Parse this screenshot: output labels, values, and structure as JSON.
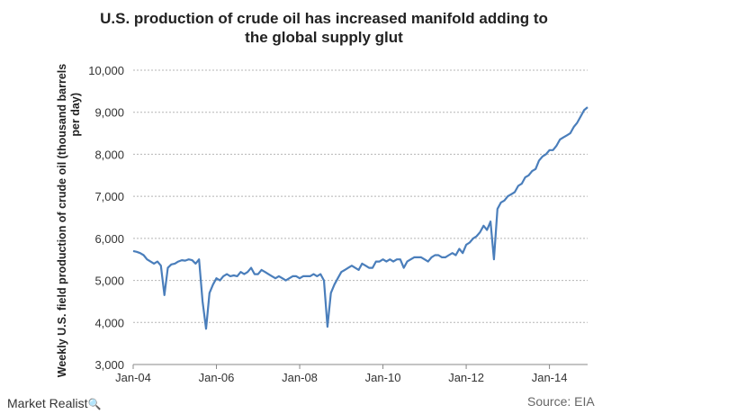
{
  "chart_data": {
    "type": "line",
    "title_line1": "U.S. production of crude oil has increased manifold adding to",
    "title_line2": "the global supply glut",
    "ylabel_line1": "Weekly U.S. field production of crude oil (thousand barrels",
    "ylabel_line2": "per day)",
    "xlabel": "",
    "ylim": [
      3000,
      10000
    ],
    "yticks": [
      "3,000",
      "4,000",
      "5,000",
      "6,000",
      "7,000",
      "8,000",
      "9,000",
      "10,000"
    ],
    "yticks_values": [
      3000,
      4000,
      5000,
      6000,
      7000,
      8000,
      9000,
      10000
    ],
    "xlim": [
      "2004-01",
      "2014-12"
    ],
    "xticks": [
      "Jan-04",
      "Jan-06",
      "Jan-08",
      "Jan-10",
      "Jan-12",
      "Jan-14"
    ],
    "xticks_values": [
      "2004-01",
      "2006-01",
      "2008-01",
      "2010-01",
      "2012-01",
      "2014-01"
    ],
    "grid": "horizontal-dashed",
    "line_color": "#4a7ebb",
    "series": [
      {
        "x": [
          "2004-01",
          "2004-02",
          "2004-03",
          "2004-04",
          "2004-05",
          "2004-06",
          "2004-07",
          "2004-08",
          "2004-09",
          "2004-10",
          "2004-11",
          "2004-12",
          "2005-01",
          "2005-02",
          "2005-03",
          "2005-04",
          "2005-05",
          "2005-06",
          "2005-07",
          "2005-08",
          "2005-09",
          "2005-10",
          "2005-11",
          "2005-12",
          "2006-01",
          "2006-02",
          "2006-03",
          "2006-04",
          "2006-05",
          "2006-06",
          "2006-07",
          "2006-08",
          "2006-09",
          "2006-10",
          "2006-11",
          "2006-12",
          "2007-01",
          "2007-02",
          "2007-03",
          "2007-04",
          "2007-05",
          "2007-06",
          "2007-07",
          "2007-08",
          "2007-09",
          "2007-10",
          "2007-11",
          "2007-12",
          "2008-01",
          "2008-02",
          "2008-03",
          "2008-04",
          "2008-05",
          "2008-06",
          "2008-07",
          "2008-08",
          "2008-09",
          "2008-10",
          "2008-11",
          "2008-12",
          "2009-01",
          "2009-02",
          "2009-03",
          "2009-04",
          "2009-05",
          "2009-06",
          "2009-07",
          "2009-08",
          "2009-09",
          "2009-10",
          "2009-11",
          "2009-12",
          "2010-01",
          "2010-02",
          "2010-03",
          "2010-04",
          "2010-05",
          "2010-06",
          "2010-07",
          "2010-08",
          "2010-09",
          "2010-10",
          "2010-11",
          "2010-12",
          "2011-01",
          "2011-02",
          "2011-03",
          "2011-04",
          "2011-05",
          "2011-06",
          "2011-07",
          "2011-08",
          "2011-09",
          "2011-10",
          "2011-11",
          "2011-12",
          "2012-01",
          "2012-02",
          "2012-03",
          "2012-04",
          "2012-05",
          "2012-06",
          "2012-07",
          "2012-08",
          "2012-09",
          "2012-10",
          "2012-11",
          "2012-12",
          "2013-01",
          "2013-02",
          "2013-03",
          "2013-04",
          "2013-05",
          "2013-06",
          "2013-07",
          "2013-08",
          "2013-09",
          "2013-10",
          "2013-11",
          "2013-12",
          "2014-01",
          "2014-02",
          "2014-03",
          "2014-04",
          "2014-05",
          "2014-06",
          "2014-07",
          "2014-08",
          "2014-09",
          "2014-10",
          "2014-11",
          "2014-12"
        ],
        "values": [
          5700,
          5680,
          5650,
          5600,
          5500,
          5450,
          5400,
          5450,
          5350,
          4650,
          5300,
          5380,
          5400,
          5450,
          5480,
          5470,
          5500,
          5480,
          5400,
          5500,
          4500,
          3850,
          4700,
          4900,
          5050,
          5000,
          5100,
          5150,
          5100,
          5120,
          5100,
          5200,
          5150,
          5200,
          5300,
          5150,
          5150,
          5250,
          5200,
          5150,
          5100,
          5050,
          5100,
          5050,
          5000,
          5050,
          5100,
          5100,
          5050,
          5100,
          5100,
          5100,
          5150,
          5100,
          5150,
          5000,
          3900,
          4700,
          4900,
          5050,
          5200,
          5250,
          5300,
          5350,
          5300,
          5250,
          5400,
          5350,
          5300,
          5300,
          5450,
          5450,
          5500,
          5450,
          5500,
          5450,
          5500,
          5500,
          5300,
          5450,
          5500,
          5550,
          5550,
          5550,
          5500,
          5450,
          5550,
          5600,
          5600,
          5550,
          5550,
          5600,
          5650,
          5600,
          5750,
          5650,
          5850,
          5900,
          6000,
          6050,
          6150,
          6300,
          6200,
          6400,
          5500,
          6700,
          6850,
          6900,
          7000,
          7050,
          7100,
          7250,
          7300,
          7450,
          7500,
          7600,
          7650,
          7850,
          7950,
          8000,
          8100,
          8100,
          8200,
          8350,
          8400,
          8450,
          8500,
          8650,
          8750,
          8900,
          9050,
          9120
        ]
      }
    ]
  },
  "footer": {
    "brand": "Market Realist",
    "brand_mark": "🔍",
    "source": "Source: EIA"
  }
}
